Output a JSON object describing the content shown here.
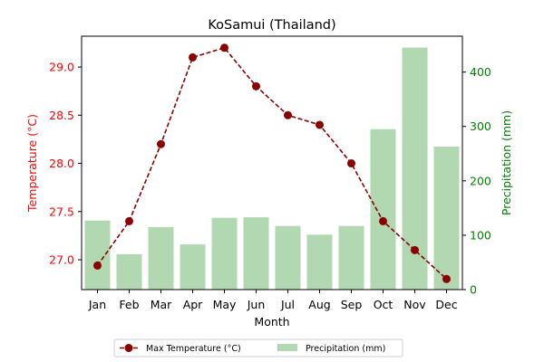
{
  "chart_data": {
    "type": "bar+line",
    "title": "KoSamui (Thailand)",
    "xlabel": "Month",
    "ylabel_left": "Temperature (°C)",
    "ylabel_right": "Precipitation (mm)",
    "categories": [
      "Jan",
      "Feb",
      "Mar",
      "Apr",
      "May",
      "Jun",
      "Jul",
      "Aug",
      "Sep",
      "Oct",
      "Nov",
      "Dec"
    ],
    "ylim_left": [
      26.69,
      29.32
    ],
    "yticks_left": [
      "27.0",
      "27.5",
      "28.0",
      "28.5",
      "29.0"
    ],
    "ylim_right": [
      0,
      466
    ],
    "yticks_right": [
      "0",
      "100",
      "200",
      "300",
      "400"
    ],
    "grid": false,
    "legend_placement": "bottom-center",
    "series": [
      {
        "name": "Max Temperature (°C)",
        "axis": "left",
        "kind": "line",
        "values": [
          26.94,
          27.4,
          28.2,
          29.1,
          29.2,
          28.8,
          28.5,
          28.4,
          28.0,
          27.4,
          27.1,
          26.8
        ]
      },
      {
        "name": "Precipitation (mm)",
        "axis": "right",
        "kind": "bar",
        "values": [
          127,
          65,
          115,
          83,
          132,
          133,
          117,
          101,
          117,
          295,
          445,
          263
        ]
      }
    ],
    "colors": {
      "line": "#8b0000",
      "bar": "#b2d8b2",
      "left_axis": "#ff0000",
      "right_axis": "#008000"
    }
  }
}
